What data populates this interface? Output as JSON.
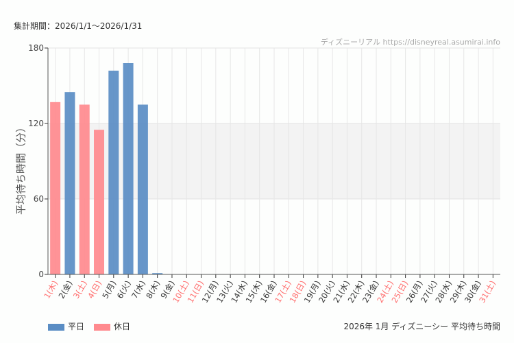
{
  "header": {
    "period": "集計期間：2026/1/1〜2026/1/31",
    "watermark": "ディズニーリアル https://disneyreal.asumirai.info"
  },
  "footer": {
    "caption": "2026年 1月 ディズニーシー 平均待ち時間"
  },
  "chart_data": {
    "type": "bar",
    "ylabel": "平均待ち時間（分）",
    "ylim": [
      0,
      180
    ],
    "yticks": [
      0,
      60,
      120,
      180
    ],
    "grid": true,
    "band": [
      60,
      120
    ],
    "legend": {
      "placement": "bottom-left",
      "entries": [
        {
          "name": "平日",
          "color": "#5a8dc4"
        },
        {
          "name": "休日",
          "color": "#ff8a8e"
        }
      ]
    },
    "categories": [
      "1(木)",
      "2(金)",
      "3(土)",
      "4(日)",
      "5(月)",
      "6(火)",
      "7(水)",
      "8(木)",
      "9(金)",
      "10(土)",
      "11(日)",
      "12(月)",
      "13(火)",
      "14(水)",
      "15(木)",
      "16(金)",
      "17(土)",
      "18(日)",
      "19(月)",
      "20(火)",
      "21(水)",
      "22(木)",
      "23(金)",
      "24(土)",
      "25(日)",
      "26(月)",
      "27(火)",
      "28(水)",
      "29(木)",
      "30(金)",
      "31(土)"
    ],
    "holiday": [
      true,
      false,
      true,
      true,
      false,
      false,
      false,
      false,
      false,
      true,
      true,
      false,
      false,
      false,
      false,
      false,
      true,
      true,
      false,
      false,
      false,
      false,
      false,
      true,
      true,
      false,
      false,
      false,
      false,
      false,
      true
    ],
    "values": [
      137,
      145,
      135,
      115,
      162,
      168,
      135,
      1,
      null,
      null,
      null,
      null,
      null,
      null,
      null,
      null,
      null,
      null,
      null,
      null,
      null,
      null,
      null,
      null,
      null,
      null,
      null,
      null,
      null,
      null,
      null
    ],
    "colors": {
      "weekday": "#5a8dc4",
      "holiday": "#ff8a8e",
      "holiday_label": "#ff6b6b",
      "label": "#333333"
    }
  }
}
